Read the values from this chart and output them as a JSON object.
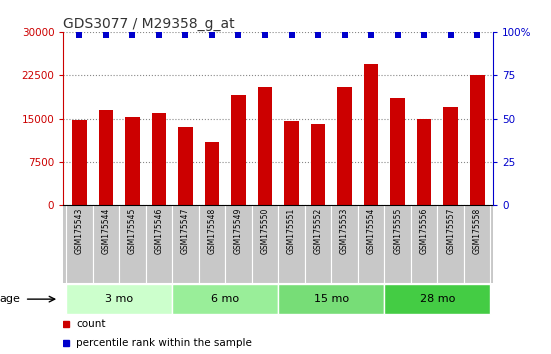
{
  "title": "GDS3077 / M29358_g_at",
  "samples": [
    "GSM175543",
    "GSM175544",
    "GSM175545",
    "GSM175546",
    "GSM175547",
    "GSM175548",
    "GSM175549",
    "GSM175550",
    "GSM175551",
    "GSM175552",
    "GSM175553",
    "GSM175554",
    "GSM175555",
    "GSM175556",
    "GSM175557",
    "GSM175558"
  ],
  "counts": [
    14800,
    16500,
    15200,
    16000,
    13500,
    11000,
    19000,
    20500,
    14500,
    14000,
    20500,
    24500,
    18500,
    15000,
    17000,
    22500
  ],
  "bar_color": "#cc0000",
  "dot_color": "#0000cc",
  "ylim_left": [
    0,
    30000
  ],
  "ylim_right": [
    0,
    100
  ],
  "yticks_left": [
    0,
    7500,
    15000,
    22500,
    30000
  ],
  "yticks_right": [
    0,
    25,
    50,
    75,
    100
  ],
  "groups": [
    {
      "label": "3 mo",
      "samples": 4,
      "color": "#ccffcc"
    },
    {
      "label": "6 mo",
      "samples": 4,
      "color": "#99ee99"
    },
    {
      "label": "15 mo",
      "samples": 4,
      "color": "#77dd77"
    },
    {
      "label": "28 mo",
      "samples": 4,
      "color": "#44cc44"
    }
  ],
  "legend_count_label": "count",
  "legend_pct_label": "percentile rank within the sample",
  "age_label": "age",
  "title_color": "#333333",
  "left_axis_color": "#cc0000",
  "right_axis_color": "#0000cc",
  "dot_pct": 98,
  "dot_size": 25,
  "bar_width": 0.55,
  "plot_bg_color": "#ffffff",
  "label_row_bg": "#c8c8c8",
  "label_fontsize": 5.5,
  "tick_fontsize": 7.5,
  "title_fontsize": 10
}
